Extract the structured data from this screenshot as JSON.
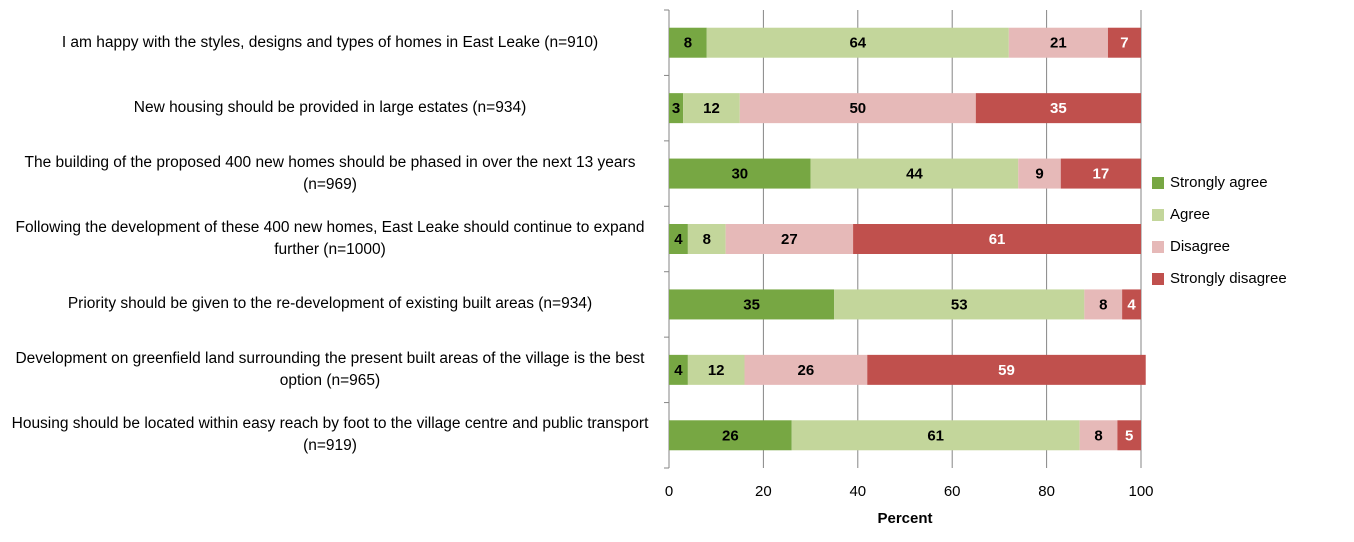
{
  "chart_data": {
    "type": "stacked_barh",
    "categories": [
      "I am happy with the styles, designs and types of homes in East Leake (n=910)",
      "New housing should be provided in large estates (n=934)",
      "The building of the proposed 400 new homes should be phased in over the next 13 years (n=969)",
      "Following the development of these 400 new homes, East Leake should continue to expand further (n=1000)",
      "Priority should be given to the re-development of existing built areas (n=934)",
      "Development on greenfield land surrounding the present built areas of the village is the best option (n=965)",
      "Housing should be located within easy reach by foot to the village centre and public transport (n=919)"
    ],
    "series": [
      {
        "name": "Strongly agree",
        "color": "#77a743",
        "label_color": "#000000",
        "values": [
          8,
          3,
          30,
          4,
          35,
          4,
          26
        ]
      },
      {
        "name": "Agree",
        "color": "#c3d69b",
        "label_color": "#000000",
        "values": [
          64,
          12,
          44,
          8,
          53,
          12,
          61
        ]
      },
      {
        "name": "Disagree",
        "color": "#e6b9b8",
        "label_color": "#000000",
        "values": [
          21,
          50,
          9,
          27,
          8,
          26,
          8
        ]
      },
      {
        "name": "Strongly disagree",
        "color": "#c0504d",
        "label_color": "#ffffff",
        "values": [
          7,
          35,
          17,
          61,
          4,
          59,
          5
        ]
      }
    ],
    "xlabel": "Percent",
    "xlim": [
      0,
      100
    ],
    "xticks": [
      0,
      20,
      40,
      60,
      80,
      100
    ],
    "grid": true,
    "legend": "right"
  }
}
